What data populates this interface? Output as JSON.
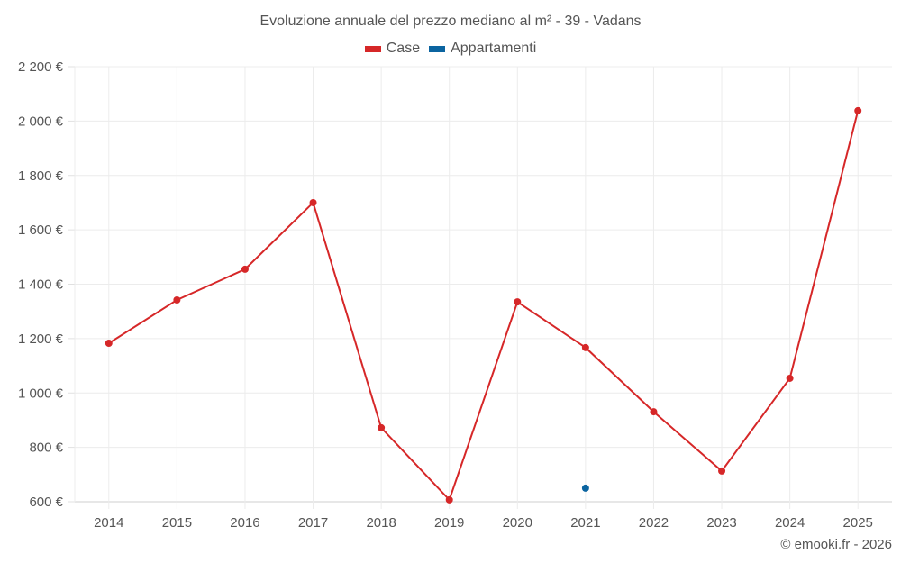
{
  "chart_data": {
    "type": "line",
    "title": "Evoluzione annuale del prezzo mediano al m² - 39 - Vadans",
    "xlabel": "",
    "ylabel": "",
    "categories": [
      "2014",
      "2015",
      "2016",
      "2017",
      "2018",
      "2019",
      "2020",
      "2021",
      "2022",
      "2023",
      "2024",
      "2025"
    ],
    "series": [
      {
        "name": "Case",
        "color": "#d62728",
        "values": [
          1183,
          1342,
          1455,
          1700,
          872,
          607,
          1335,
          1167,
          931,
          713,
          1054,
          2038
        ]
      },
      {
        "name": "Appartamenti",
        "color": "#0b64a0",
        "values": [
          null,
          null,
          null,
          null,
          null,
          null,
          null,
          650,
          null,
          null,
          null,
          null
        ]
      }
    ],
    "ylim": [
      600,
      2200
    ],
    "yticks": [
      600,
      800,
      1000,
      1200,
      1400,
      1600,
      1800,
      2000,
      2200
    ],
    "ytick_labels": [
      "600 €",
      "800 €",
      "1 000 €",
      "1 200 €",
      "1 400 €",
      "1 600 €",
      "1 800 €",
      "2 000 €",
      "2 200 €"
    ],
    "grid": true,
    "legend_position": "top"
  },
  "header": {
    "title": "Evoluzione annuale del prezzo mediano al m² - 39 - Vadans"
  },
  "legend": [
    {
      "label": "Case",
      "color": "#d62728"
    },
    {
      "label": "Appartamenti",
      "color": "#0b64a0"
    }
  ],
  "footer": {
    "credit": "© emooki.fr - 2026"
  }
}
